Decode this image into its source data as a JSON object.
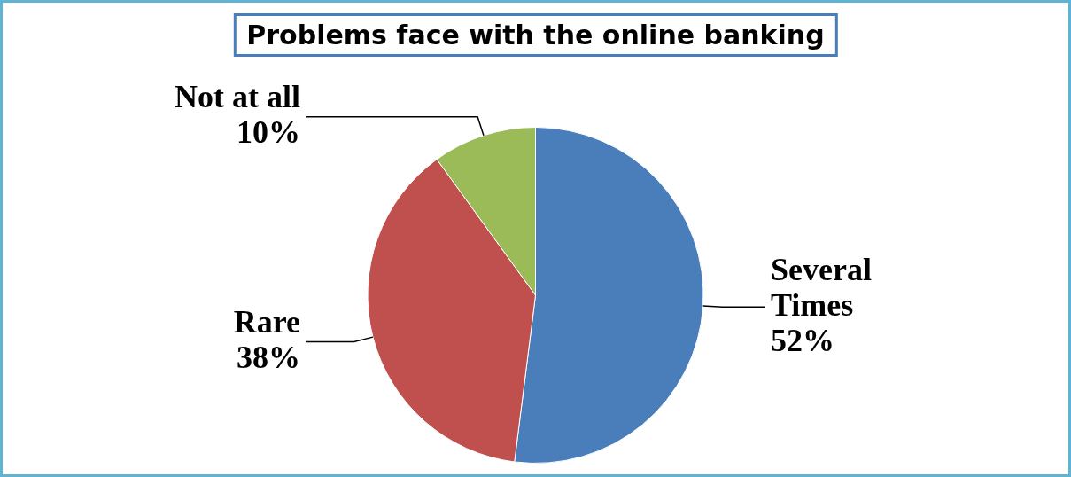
{
  "chart_data": {
    "type": "pie",
    "title": "Problems face with the online banking",
    "categories": [
      "Several Times",
      "Rare",
      "Not at all"
    ],
    "values": [
      52,
      38,
      10
    ],
    "value_labels": [
      "52%",
      "38%",
      "10%"
    ],
    "colors": [
      "#4a7ebb",
      "#c0504d",
      "#9bbb59"
    ],
    "legend": false
  }
}
